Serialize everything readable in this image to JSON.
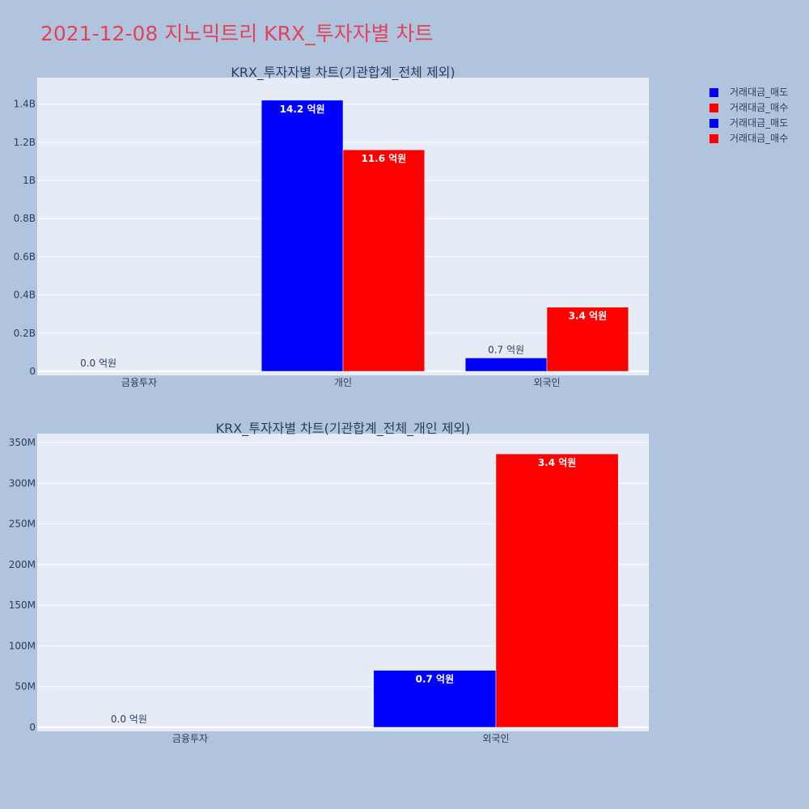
{
  "title": "2021-12-08 지노믹트리 KRX_투자자별 차트",
  "legend": [
    {
      "label": "거래대금_매도",
      "color": "#0000ff"
    },
    {
      "label": "거래대금_매수",
      "color": "#ff0000"
    },
    {
      "label": "거래대금_매도",
      "color": "#0000ff"
    },
    {
      "label": "거래대금_매수",
      "color": "#ff0000"
    }
  ],
  "chart_data": [
    {
      "type": "bar",
      "title": "KRX_투자자별 차트(기관합계_전체 제외)",
      "categories": [
        "금융투자",
        "개인",
        "외국인"
      ],
      "series": [
        {
          "name": "거래대금_매도",
          "color": "#0000ff",
          "values": [
            0,
            1420000000,
            70000000
          ],
          "labels": [
            "0.0 억원",
            "14.2 억원",
            "0.7 억원"
          ]
        },
        {
          "name": "거래대금_매수",
          "color": "#ff0000",
          "values": [
            0,
            1160000000,
            336000000
          ],
          "labels": [
            "",
            "11.6 억원",
            "3.4 억원"
          ]
        }
      ],
      "ylim": [
        0,
        1500000000
      ],
      "yticks": [
        {
          "value": 0,
          "label": "0"
        },
        {
          "value": 200000000,
          "label": "0.2B"
        },
        {
          "value": 400000000,
          "label": "0.4B"
        },
        {
          "value": 600000000,
          "label": "0.6B"
        },
        {
          "value": 800000000,
          "label": "0.8B"
        },
        {
          "value": 1000000000,
          "label": "1B"
        },
        {
          "value": 1200000000,
          "label": "1.2B"
        },
        {
          "value": 1400000000,
          "label": "1.4B"
        }
      ]
    },
    {
      "type": "bar",
      "title": "KRX_투자자별 차트(기관합계_전체_개인 제외)",
      "categories": [
        "금융투자",
        "외국인"
      ],
      "series": [
        {
          "name": "거래대금_매도",
          "color": "#0000ff",
          "values": [
            0,
            70000000
          ],
          "labels": [
            "0.0 억원",
            "0.7 억원"
          ]
        },
        {
          "name": "거래대금_매수",
          "color": "#ff0000",
          "values": [
            0,
            336000000
          ],
          "labels": [
            "",
            "3.4 억원"
          ]
        }
      ],
      "ylim": [
        0,
        352000000
      ],
      "yticks": [
        {
          "value": 0,
          "label": "0"
        },
        {
          "value": 50000000,
          "label": "50M"
        },
        {
          "value": 100000000,
          "label": "100M"
        },
        {
          "value": 150000000,
          "label": "150M"
        },
        {
          "value": 200000000,
          "label": "200M"
        },
        {
          "value": 250000000,
          "label": "250M"
        },
        {
          "value": 300000000,
          "label": "300M"
        },
        {
          "value": 350000000,
          "label": "350M"
        }
      ]
    }
  ]
}
